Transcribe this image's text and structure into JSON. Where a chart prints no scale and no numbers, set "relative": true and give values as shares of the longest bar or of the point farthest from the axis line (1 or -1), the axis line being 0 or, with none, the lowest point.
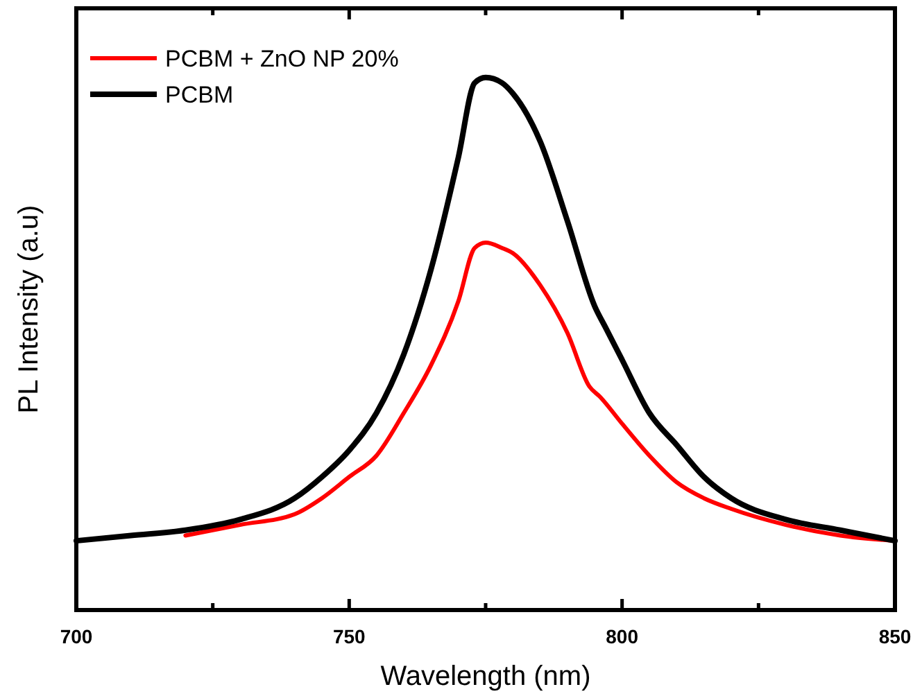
{
  "chart_data": {
    "type": "line",
    "xlabel": "Wavelength (nm)",
    "ylabel": "PL Intensity (a.u)",
    "relative": true,
    "xlim": [
      700,
      850
    ],
    "xticks": [
      700,
      {
        "value": 725,
        "label": null
      },
      750,
      {
        "value": 775,
        "label": null
      },
      800,
      {
        "value": 825,
        "label": null
      },
      850
    ],
    "legend": "top left",
    "grid": false,
    "marker": "none",
    "line_style": "solid",
    "x": [
      700,
      710,
      720,
      730,
      740,
      745,
      750,
      755,
      760,
      765,
      770,
      773,
      775,
      778,
      780,
      785,
      790,
      795,
      797,
      800,
      805,
      810,
      815,
      820,
      830,
      840,
      850
    ],
    "series": [
      {
        "name": "PCBM + ZnO NP 20%",
        "color": "#ff0000",
        "x": [
          720,
          730,
          740,
          745,
          750,
          755,
          760,
          765,
          770,
          773,
          775,
          778,
          780,
          785,
          790,
          794,
          796,
          800,
          805,
          810,
          815,
          820,
          830,
          840,
          850
        ],
        "values": [
          0.14,
          0.16,
          0.18,
          0.21,
          0.25,
          0.29,
          0.37,
          0.46,
          0.58,
          0.68,
          0.69,
          0.68,
          0.67,
          0.61,
          0.52,
          0.42,
          0.4,
          0.35,
          0.29,
          0.24,
          0.21,
          0.19,
          0.16,
          0.14,
          0.13
        ]
      },
      {
        "name": "PCBM",
        "color": "#000000",
        "values": [
          0.13,
          0.14,
          0.15,
          0.17,
          0.21,
          0.25,
          0.3,
          0.37,
          0.48,
          0.64,
          0.85,
          0.99,
          1,
          0.99,
          0.97,
          0.88,
          0.73,
          0.57,
          0.53,
          0.47,
          0.37,
          0.31,
          0.25,
          0.21,
          0.17,
          0.15,
          0.13
        ]
      }
    ]
  }
}
